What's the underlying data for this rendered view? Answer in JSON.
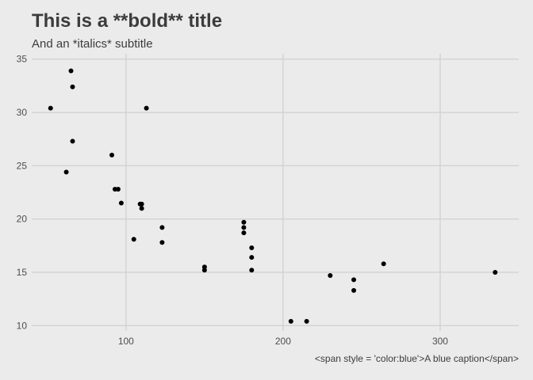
{
  "title": "This is a **bold** title",
  "subtitle": "And an *italics* subtitle",
  "caption": "<span style = 'color:blue'>A blue caption</span>",
  "colors": {
    "background": "#ebebeb",
    "grid": "#d2d2d2",
    "point": "#000000",
    "text": "#3c3c3c"
  },
  "chart_data": {
    "type": "scatter",
    "xlabel": "",
    "ylabel": "",
    "xlim": [
      40,
      350
    ],
    "ylim": [
      9.5,
      35.5
    ],
    "x_ticks": [
      100,
      200,
      300
    ],
    "y_ticks": [
      10,
      15,
      20,
      25,
      30,
      35
    ],
    "grid": true,
    "series": [
      {
        "points": [
          [
            52,
            30.4
          ],
          [
            62,
            24.4
          ],
          [
            65,
            33.9
          ],
          [
            66,
            32.4
          ],
          [
            66,
            27.3
          ],
          [
            91,
            26.0
          ],
          [
            93,
            22.8
          ],
          [
            95,
            22.8
          ],
          [
            97,
            21.5
          ],
          [
            105,
            18.1
          ],
          [
            109,
            21.4
          ],
          [
            110,
            21.4
          ],
          [
            110,
            21.0
          ],
          [
            113,
            30.4
          ],
          [
            123,
            19.2
          ],
          [
            123,
            17.8
          ],
          [
            150,
            15.5
          ],
          [
            150,
            15.2
          ],
          [
            175,
            19.7
          ],
          [
            175,
            19.2
          ],
          [
            175,
            18.7
          ],
          [
            180,
            17.3
          ],
          [
            180,
            16.4
          ],
          [
            180,
            15.2
          ],
          [
            205,
            10.4
          ],
          [
            215,
            10.4
          ],
          [
            230,
            14.7
          ],
          [
            245,
            14.3
          ],
          [
            245,
            13.3
          ],
          [
            264,
            15.8
          ],
          [
            335,
            15.0
          ]
        ]
      }
    ]
  }
}
